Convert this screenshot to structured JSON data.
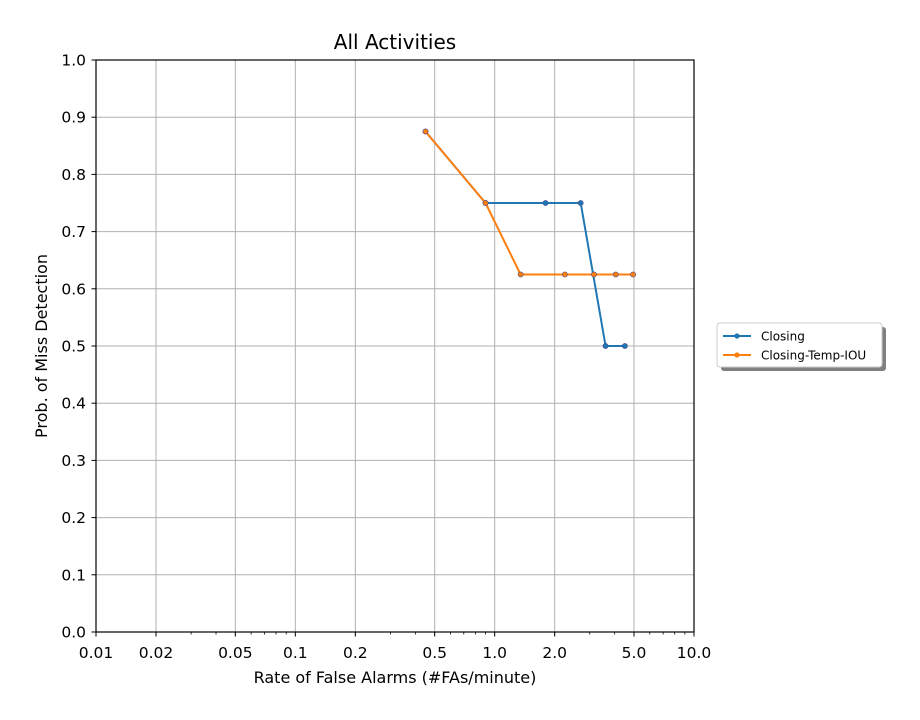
{
  "chart_data": {
    "type": "line",
    "title": "All Activities",
    "xlabel": "Rate of False Alarms (#FAs/minute)",
    "ylabel": "Prob. of Miss Detection",
    "xscale": "log",
    "xlim": [
      0.01,
      10.0
    ],
    "ylim": [
      0.0,
      1.0
    ],
    "x_ticks": [
      0.01,
      0.02,
      0.05,
      0.1,
      0.2,
      0.5,
      1.0,
      2.0,
      5.0,
      10.0
    ],
    "x_tick_labels": [
      "0.01",
      "0.02",
      "0.05",
      "0.1",
      "0.2",
      "0.5",
      "1.0",
      "2.0",
      "5.0",
      "10.0"
    ],
    "y_ticks": [
      0.0,
      0.1,
      0.2,
      0.3,
      0.4,
      0.5,
      0.6,
      0.7,
      0.8,
      0.9,
      1.0
    ],
    "y_tick_labels": [
      "0.0",
      "0.1",
      "0.2",
      "0.3",
      "0.4",
      "0.5",
      "0.6",
      "0.7",
      "0.8",
      "0.9",
      "1.0"
    ],
    "grid": true,
    "legend_position": "outside-right",
    "series": [
      {
        "name": "Closing",
        "color": "#1f77b4",
        "marker_color": "#1f77b4",
        "x": [
          0.45,
          0.9,
          1.8,
          2.7,
          3.6,
          4.5
        ],
        "y": [
          0.875,
          0.75,
          0.75,
          0.75,
          0.5,
          0.5
        ]
      },
      {
        "name": "Closing-Temp-IOU",
        "color": "#ff7f0e",
        "marker_color": "#ff7f0e",
        "x": [
          0.45,
          0.9,
          1.35,
          2.25,
          3.15,
          4.05,
          4.95
        ],
        "y": [
          0.875,
          0.75,
          0.625,
          0.625,
          0.625,
          0.625,
          0.625
        ]
      }
    ]
  }
}
